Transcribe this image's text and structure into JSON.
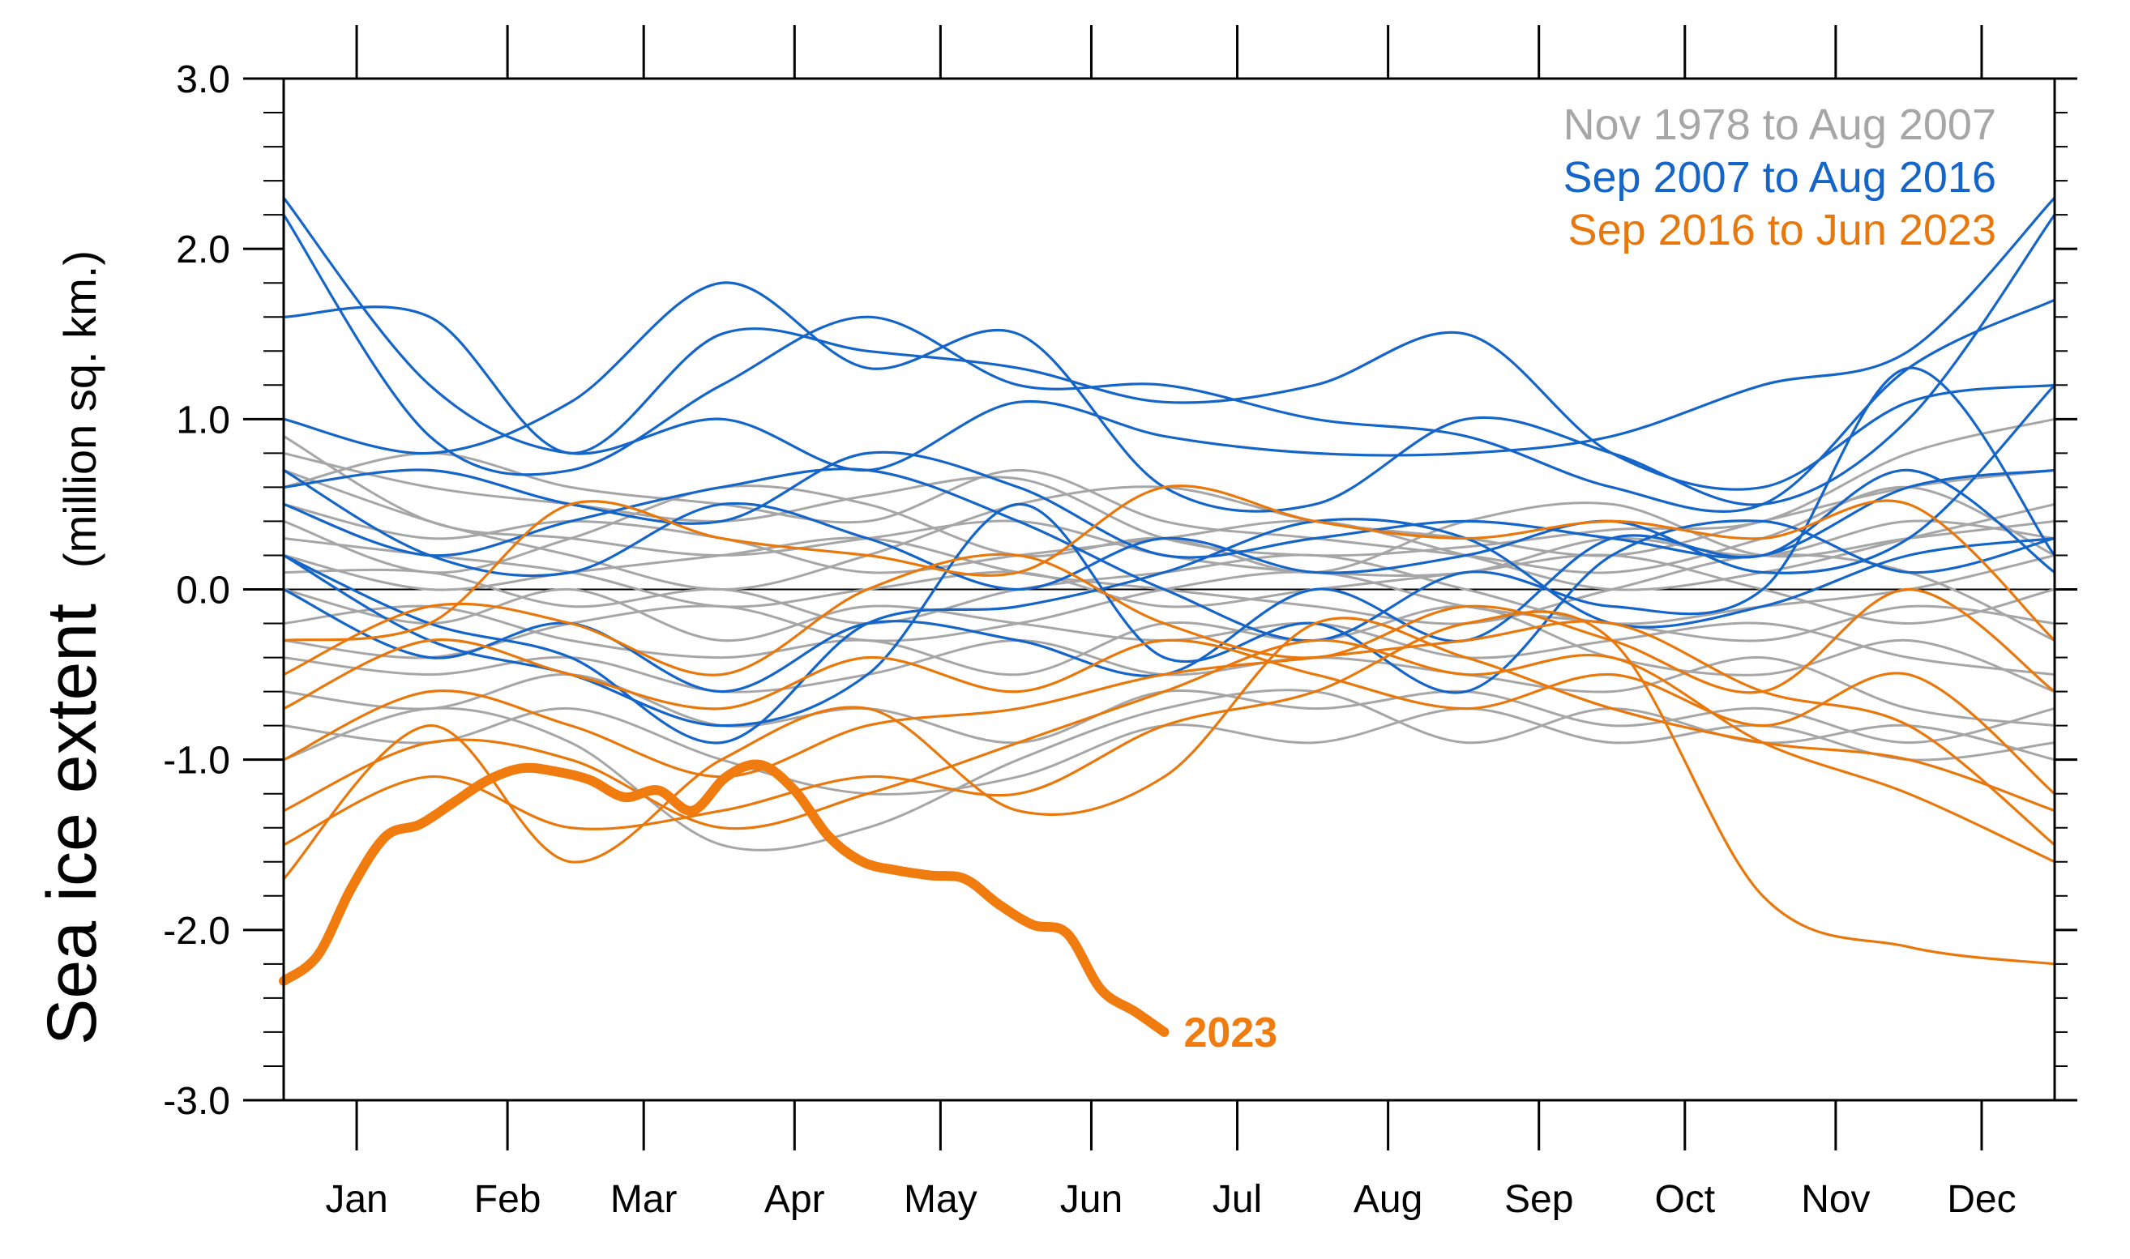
{
  "chart_data": {
    "type": "line",
    "ylabel": "Sea ice extent",
    "ylabel_units": "(million sq. km.)",
    "ylim": [
      -3.0,
      3.0
    ],
    "yticks": [
      "3.0",
      "2.0",
      "1.0",
      "0.0",
      "-1.0",
      "-2.0",
      "-3.0"
    ],
    "ytick_values": [
      3,
      2,
      1,
      0,
      -1,
      -2,
      -3
    ],
    "months": [
      "Jan",
      "Feb",
      "Mar",
      "Apr",
      "May",
      "Jun",
      "Jul",
      "Aug",
      "Sep",
      "Oct",
      "Nov",
      "Dec"
    ],
    "x_unit": "day of year",
    "xlim": [
      1,
      365
    ],
    "zero_line": true,
    "legend_position": "top-right",
    "legend": [
      {
        "label": "Nov 1978 to Aug 2007",
        "color": "#a6a6a6"
      },
      {
        "label": "Sep 2007 to Aug 2016",
        "color": "#1565c8"
      },
      {
        "label": "Sep 2016 to Jun 2023",
        "color": "#e8780c"
      }
    ],
    "highlight": {
      "label": "2023",
      "color": "#f07c10",
      "x": [
        1,
        8,
        15,
        22,
        29,
        36,
        43,
        50,
        57,
        64,
        71,
        78,
        85,
        92,
        99,
        106,
        113,
        120,
        127,
        134,
        141,
        148,
        155,
        162,
        169,
        176,
        182
      ],
      "values": [
        -2.3,
        -2.15,
        -1.75,
        -1.45,
        -1.38,
        -1.25,
        -1.12,
        -1.05,
        -1.07,
        -1.12,
        -1.22,
        -1.18,
        -1.3,
        -1.1,
        -1.03,
        -1.18,
        -1.45,
        -1.6,
        -1.65,
        -1.68,
        -1.7,
        -1.85,
        -1.97,
        -2.02,
        -2.35,
        -2.48,
        -2.6
      ]
    },
    "series_groups": [
      {
        "group": "Nov 1978 to Aug 2007",
        "color": "#a6a6a6",
        "x": [
          1,
          31,
          60,
          91,
          121,
          152,
          182,
          213,
          244,
          274,
          305,
          335,
          365
        ],
        "lines": [
          [
            0.8,
            0.6,
            0.5,
            0.4,
            0.55,
            0.65,
            0.3,
            0.2,
            0.25,
            0.35,
            0.4,
            0.8,
            1.0
          ],
          [
            0.9,
            0.4,
            0.3,
            0.2,
            0.3,
            0.4,
            0.2,
            0.1,
            0.1,
            0.3,
            0.2,
            0.4,
            0.3
          ],
          [
            0.6,
            0.8,
            0.6,
            0.5,
            0.4,
            0.7,
            0.4,
            0.3,
            0.2,
            0.1,
            0.3,
            0.6,
            0.2
          ],
          [
            0.5,
            0.3,
            0.4,
            0.3,
            0.1,
            0.2,
            0.3,
            0.4,
            0.2,
            0.0,
            0.1,
            0.3,
            0.5
          ],
          [
            0.3,
            0.2,
            0.1,
            -0.1,
            0.0,
            0.1,
            -0.1,
            0.0,
            0.1,
            0.2,
            0.0,
            -0.2,
            0.0
          ],
          [
            0.2,
            0.0,
            0.1,
            0.2,
            0.3,
            0.1,
            0.0,
            -0.1,
            -0.2,
            0.0,
            0.2,
            0.1,
            -0.3
          ],
          [
            0.1,
            0.1,
            -0.1,
            0.0,
            -0.2,
            0.0,
            0.1,
            0.2,
            0.0,
            -0.2,
            -0.1,
            0.0,
            0.2
          ],
          [
            0.0,
            -0.2,
            0.0,
            -0.3,
            -0.1,
            -0.2,
            -0.3,
            -0.2,
            -0.4,
            -0.3,
            -0.2,
            -0.4,
            -0.5
          ],
          [
            -0.2,
            -0.1,
            -0.3,
            -0.4,
            -0.3,
            -0.5,
            -0.2,
            -0.3,
            -0.1,
            -0.4,
            -0.5,
            -0.3,
            -0.6
          ],
          [
            -0.4,
            -0.5,
            -0.4,
            -0.6,
            -0.5,
            -0.3,
            -0.5,
            -0.4,
            -0.5,
            -0.6,
            -0.4,
            -0.7,
            -0.8
          ],
          [
            -0.6,
            -0.7,
            -0.5,
            -0.8,
            -0.7,
            -0.9,
            -0.6,
            -0.7,
            -0.6,
            -0.8,
            -0.7,
            -0.9,
            -0.7
          ],
          [
            -0.8,
            -0.9,
            -0.7,
            -1.0,
            -1.2,
            -1.1,
            -0.8,
            -0.9,
            -0.7,
            -0.9,
            -0.8,
            -1.0,
            -0.9
          ],
          [
            -1.0,
            -0.7,
            -0.9,
            -1.5,
            -1.4,
            -1.0,
            -0.7,
            -0.6,
            -0.9,
            -0.7,
            -0.9,
            -0.8,
            -1.0
          ],
          [
            0.7,
            0.4,
            0.2,
            0.0,
            0.2,
            0.5,
            0.6,
            0.4,
            0.3,
            0.2,
            0.4,
            0.6,
            0.7
          ],
          [
            -0.3,
            -0.4,
            -0.2,
            -0.1,
            -0.3,
            -0.2,
            0.0,
            0.1,
            -0.1,
            -0.2,
            -0.3,
            -0.1,
            -0.2
          ],
          [
            0.4,
            0.1,
            0.3,
            0.6,
            0.5,
            0.2,
            0.3,
            0.1,
            0.4,
            0.5,
            0.2,
            0.3,
            0.4
          ]
        ]
      },
      {
        "group": "Sep 2007 to Aug 2016",
        "color": "#1565c8",
        "x": [
          1,
          31,
          60,
          91,
          121,
          152,
          182,
          213,
          244,
          274,
          305,
          335,
          365
        ],
        "lines": [
          [
            2.3,
            1.2,
            0.8,
            1.0,
            0.7,
            1.1,
            0.9,
            0.8,
            0.8,
            0.9,
            1.2,
            1.4,
            2.3
          ],
          [
            2.2,
            0.9,
            0.7,
            1.2,
            1.6,
            1.2,
            1.2,
            1.0,
            0.9,
            0.6,
            0.5,
            1.3,
            1.7
          ],
          [
            1.6,
            1.6,
            0.8,
            1.5,
            1.4,
            1.3,
            1.1,
            1.2,
            1.5,
            0.8,
            0.6,
            1.1,
            1.2
          ],
          [
            1.0,
            0.8,
            1.1,
            1.8,
            1.3,
            1.5,
            0.6,
            0.5,
            1.0,
            0.8,
            0.5,
            1.0,
            2.2
          ],
          [
            0.6,
            0.7,
            0.5,
            0.4,
            0.8,
            0.6,
            0.2,
            0.3,
            0.4,
            0.3,
            0.2,
            0.6,
            0.7
          ],
          [
            0.2,
            -0.3,
            -0.5,
            -0.8,
            -0.5,
            0.5,
            -0.4,
            -0.2,
            -0.6,
            0.2,
            0.4,
            0.1,
            0.3
          ],
          [
            0.5,
            0.2,
            0.4,
            0.6,
            0.7,
            0.4,
            0.0,
            -0.3,
            0.1,
            -0.1,
            0.0,
            1.3,
            0.2
          ],
          [
            0.0,
            -0.4,
            -0.2,
            -0.6,
            -0.2,
            -0.3,
            -0.5,
            0.0,
            -0.3,
            0.3,
            0.2,
            0.7,
            0.1
          ],
          [
            0.7,
            0.2,
            0.1,
            0.5,
            0.3,
            0.0,
            0.3,
            0.1,
            0.2,
            0.4,
            0.1,
            0.3,
            1.2
          ],
          [
            0.2,
            -0.2,
            -0.4,
            -0.9,
            -0.2,
            -0.1,
            0.1,
            0.4,
            0.3,
            -0.2,
            -0.1,
            0.2,
            0.3
          ]
        ]
      },
      {
        "group": "Sep 2016 to Jun 2023",
        "color": "#e8780c",
        "x": [
          1,
          31,
          60,
          91,
          121,
          152,
          182,
          213,
          244,
          274,
          305,
          335,
          365
        ],
        "lines": [
          [
            -0.3,
            -0.2,
            0.5,
            0.3,
            0.2,
            0.1,
            0.6,
            0.4,
            0.3,
            0.4,
            0.3,
            0.5,
            -0.3
          ],
          [
            -0.5,
            -0.1,
            -0.2,
            -0.5,
            0.0,
            0.2,
            -0.2,
            -0.4,
            -0.1,
            -0.3,
            -0.6,
            0.0,
            -0.6
          ],
          [
            -0.7,
            -0.3,
            -0.5,
            -0.7,
            -0.4,
            -0.6,
            -0.3,
            -0.5,
            -0.7,
            -0.5,
            -0.8,
            -0.5,
            -1.2
          ],
          [
            -1.0,
            -0.6,
            -0.8,
            -1.1,
            -0.8,
            -0.7,
            -0.5,
            -0.4,
            -0.3,
            -0.2,
            -0.6,
            -0.8,
            -1.5
          ],
          [
            -1.3,
            -0.9,
            -1.0,
            -1.4,
            -1.2,
            -0.9,
            -0.6,
            -0.3,
            -0.5,
            -0.4,
            -0.9,
            -1.2,
            -1.6
          ],
          [
            -1.5,
            -1.1,
            -1.4,
            -1.3,
            -1.1,
            -1.2,
            -0.8,
            -0.6,
            -0.2,
            -0.3,
            -1.8,
            -2.1,
            -2.2
          ],
          [
            -1.7,
            -0.8,
            -1.6,
            -1.0,
            -0.7,
            -1.3,
            -1.1,
            -0.2,
            -0.4,
            -0.7,
            -0.9,
            -1.0,
            -1.3
          ]
        ]
      }
    ]
  }
}
